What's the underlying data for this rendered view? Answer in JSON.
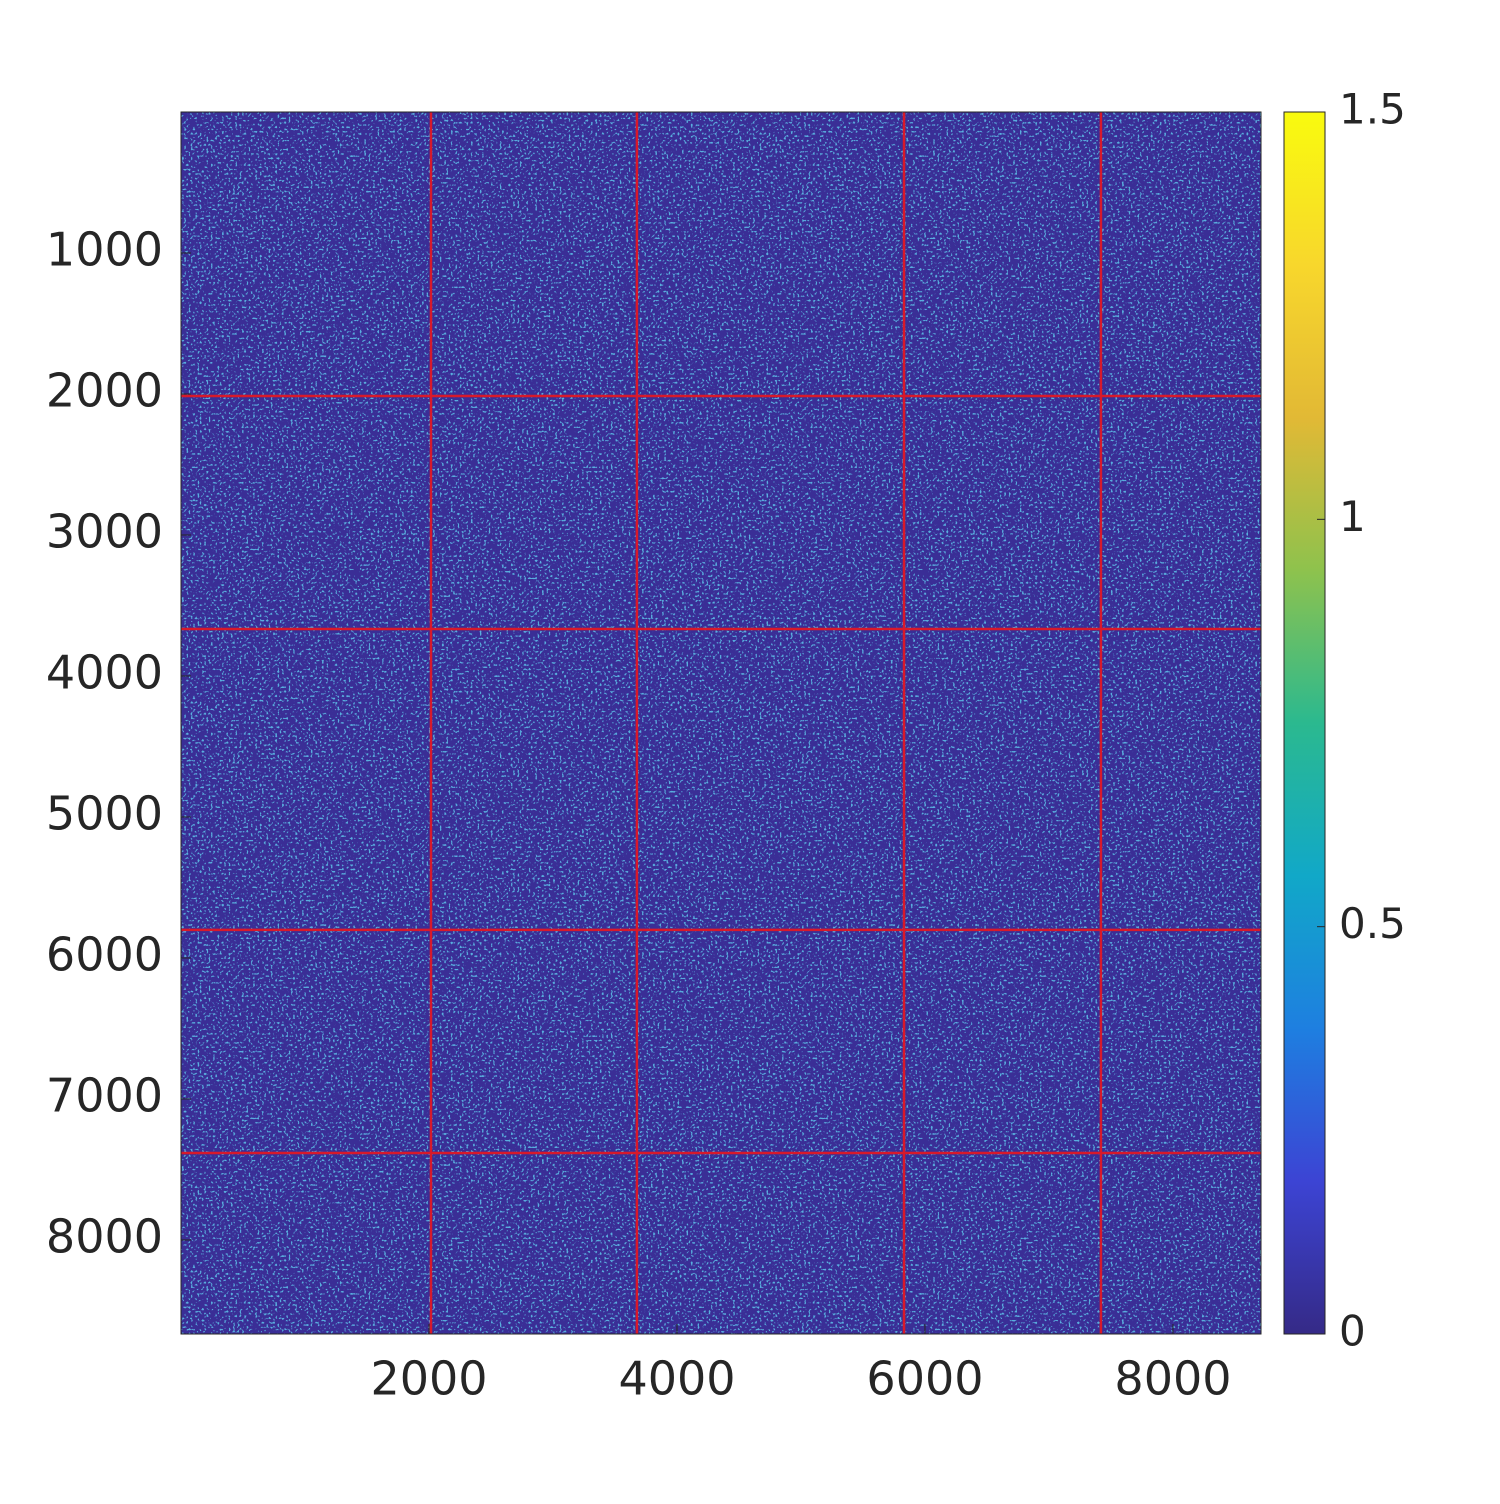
{
  "chart_data": {
    "type": "heatmap",
    "xlim": [
      0,
      8710
    ],
    "ylim": [
      0,
      8667
    ],
    "y_reversed": true,
    "xticks": [
      2000,
      4000,
      6000,
      8000
    ],
    "yticks": [
      1000,
      2000,
      3000,
      4000,
      5000,
      6000,
      7000,
      8000
    ],
    "x_dividers": [
      2016,
      3677,
      5831,
      7419
    ],
    "y_dividers": [
      2014,
      3667,
      5801,
      7383
    ],
    "divider_color": "#d7192b",
    "background_color": "#3a2e96",
    "clim": [
      0,
      1.5
    ],
    "cticks": [
      0,
      0.5,
      1,
      1.5
    ],
    "colormap": [
      "#352a87",
      "#3c44d4",
      "#1e7fe0",
      "#11a8c8",
      "#2bb98f",
      "#8ec24d",
      "#e2b935",
      "#f8d72c",
      "#f9fb0e"
    ]
  }
}
